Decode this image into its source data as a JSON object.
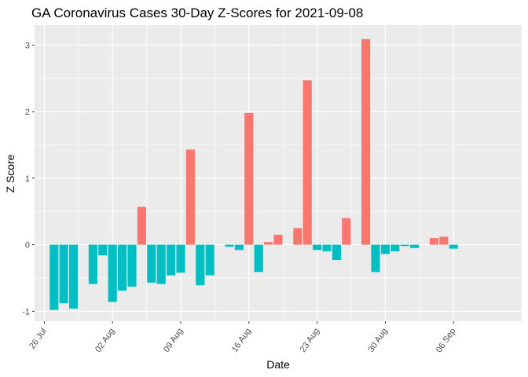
{
  "chart_data": {
    "type": "bar",
    "title": "GA Coronavirus Cases 30-Day Z-Scores for 2021-09-08",
    "xlabel": "Date",
    "ylabel": "Z Score",
    "x_range": [
      "2021-07-25",
      "2021-09-13"
    ],
    "ylim": [
      -1.15,
      3.3
    ],
    "x_tick_labels": [
      {
        "date": "2021-07-26",
        "label": "26 Jul"
      },
      {
        "date": "2021-08-02",
        "label": "02 Aug"
      },
      {
        "date": "2021-08-09",
        "label": "09 Aug"
      },
      {
        "date": "2021-08-16",
        "label": "16 Aug"
      },
      {
        "date": "2021-08-23",
        "label": "23 Aug"
      },
      {
        "date": "2021-08-30",
        "label": "30 Aug"
      },
      {
        "date": "2021-09-06",
        "label": "06 Sep"
      }
    ],
    "y_ticks": [
      -1,
      0,
      1,
      2,
      3
    ],
    "grid": true,
    "legend": "none",
    "colors": {
      "positive": "#F8766D",
      "negative": "#00BFC4",
      "panel": "#EBEBEB",
      "grid": "#FFFFFF"
    },
    "dates": [
      "2021-07-27",
      "2021-07-28",
      "2021-07-29",
      "2021-07-31",
      "2021-08-01",
      "2021-08-02",
      "2021-08-03",
      "2021-08-04",
      "2021-08-05",
      "2021-08-06",
      "2021-08-07",
      "2021-08-08",
      "2021-08-09",
      "2021-08-10",
      "2021-08-11",
      "2021-08-12",
      "2021-08-14",
      "2021-08-15",
      "2021-08-16",
      "2021-08-17",
      "2021-08-18",
      "2021-08-19",
      "2021-08-21",
      "2021-08-22",
      "2021-08-23",
      "2021-08-24",
      "2021-08-25",
      "2021-08-26",
      "2021-08-28",
      "2021-08-29",
      "2021-08-30",
      "2021-08-31",
      "2021-09-01",
      "2021-09-02",
      "2021-09-04",
      "2021-09-05",
      "2021-09-06"
    ],
    "values": [
      -0.98,
      -0.88,
      -0.96,
      -0.59,
      -0.16,
      -0.86,
      -0.69,
      -0.63,
      0.57,
      -0.57,
      -0.59,
      -0.46,
      -0.42,
      1.43,
      -0.61,
      -0.46,
      -0.03,
      -0.08,
      1.98,
      -0.41,
      0.04,
      0.15,
      0.25,
      2.47,
      -0.08,
      -0.1,
      -0.23,
      0.4,
      3.09,
      -0.41,
      -0.14,
      -0.1,
      -0.02,
      -0.05,
      0.1,
      0.12,
      -0.06
    ]
  }
}
